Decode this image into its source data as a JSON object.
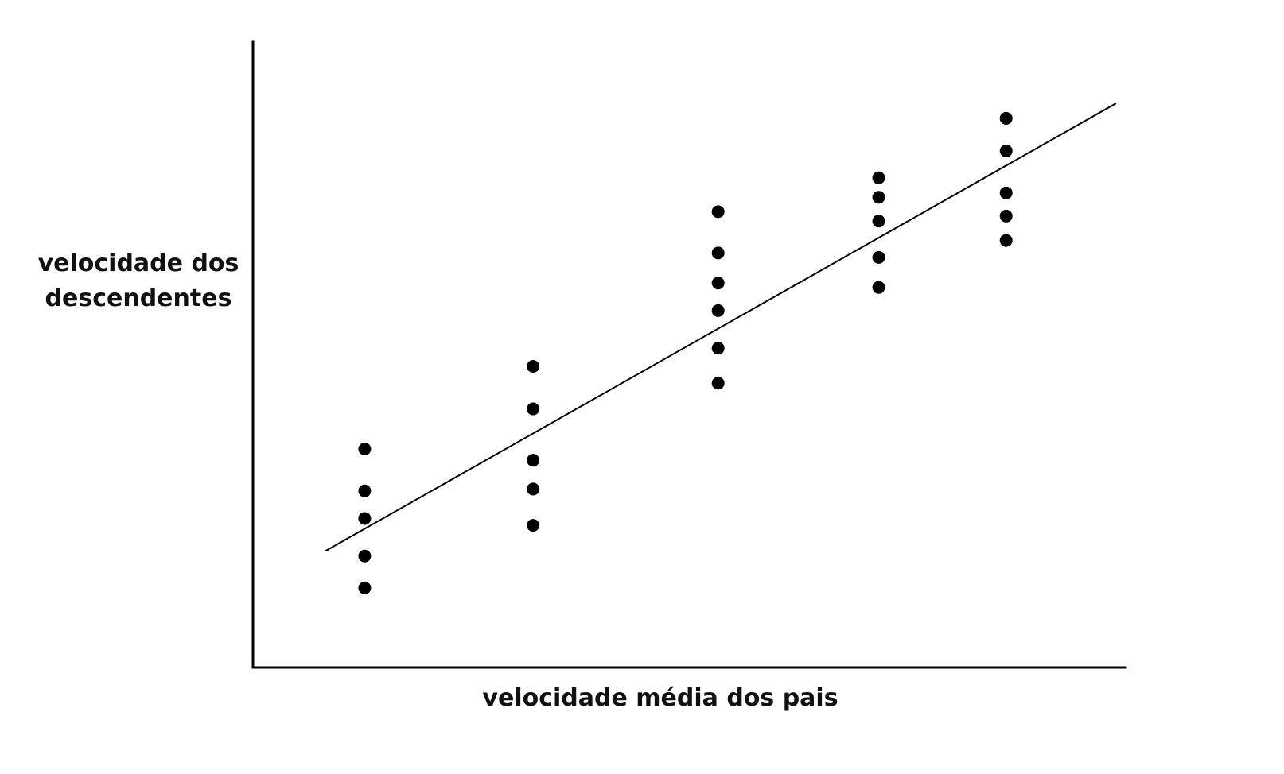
{
  "chart_data": {
    "type": "scatter",
    "title": "",
    "xlabel": "velocidade média dos pais",
    "ylabel_lines": [
      "velocidade dos",
      "descendentes"
    ],
    "xlim": [
      0,
      10
    ],
    "ylim": [
      0,
      10
    ],
    "axis_ticks": false,
    "grid": false,
    "legend": "none",
    "colors": {
      "point": "#000000",
      "line": "#000000",
      "axis": "#000000"
    },
    "points": [
      {
        "x": 1.28,
        "y": 3.49
      },
      {
        "x": 1.28,
        "y": 2.82
      },
      {
        "x": 1.28,
        "y": 2.38
      },
      {
        "x": 1.28,
        "y": 1.78
      },
      {
        "x": 1.28,
        "y": 1.27
      },
      {
        "x": 3.21,
        "y": 4.81
      },
      {
        "x": 3.21,
        "y": 4.13
      },
      {
        "x": 3.21,
        "y": 3.31
      },
      {
        "x": 3.21,
        "y": 2.85
      },
      {
        "x": 3.21,
        "y": 2.27
      },
      {
        "x": 5.33,
        "y": 7.28
      },
      {
        "x": 5.33,
        "y": 6.62
      },
      {
        "x": 5.33,
        "y": 6.14
      },
      {
        "x": 5.33,
        "y": 5.7
      },
      {
        "x": 5.33,
        "y": 5.1
      },
      {
        "x": 5.33,
        "y": 4.54
      },
      {
        "x": 7.17,
        "y": 7.82
      },
      {
        "x": 7.17,
        "y": 7.51
      },
      {
        "x": 7.17,
        "y": 7.13
      },
      {
        "x": 7.17,
        "y": 6.55
      },
      {
        "x": 7.17,
        "y": 6.07
      },
      {
        "x": 8.63,
        "y": 8.77
      },
      {
        "x": 8.63,
        "y": 8.25
      },
      {
        "x": 8.63,
        "y": 7.58
      },
      {
        "x": 8.63,
        "y": 7.21
      },
      {
        "x": 8.63,
        "y": 6.82
      }
    ],
    "trendline": [
      {
        "x": 0.83,
        "y": 1.86
      },
      {
        "x": 9.89,
        "y": 9.01
      }
    ]
  }
}
